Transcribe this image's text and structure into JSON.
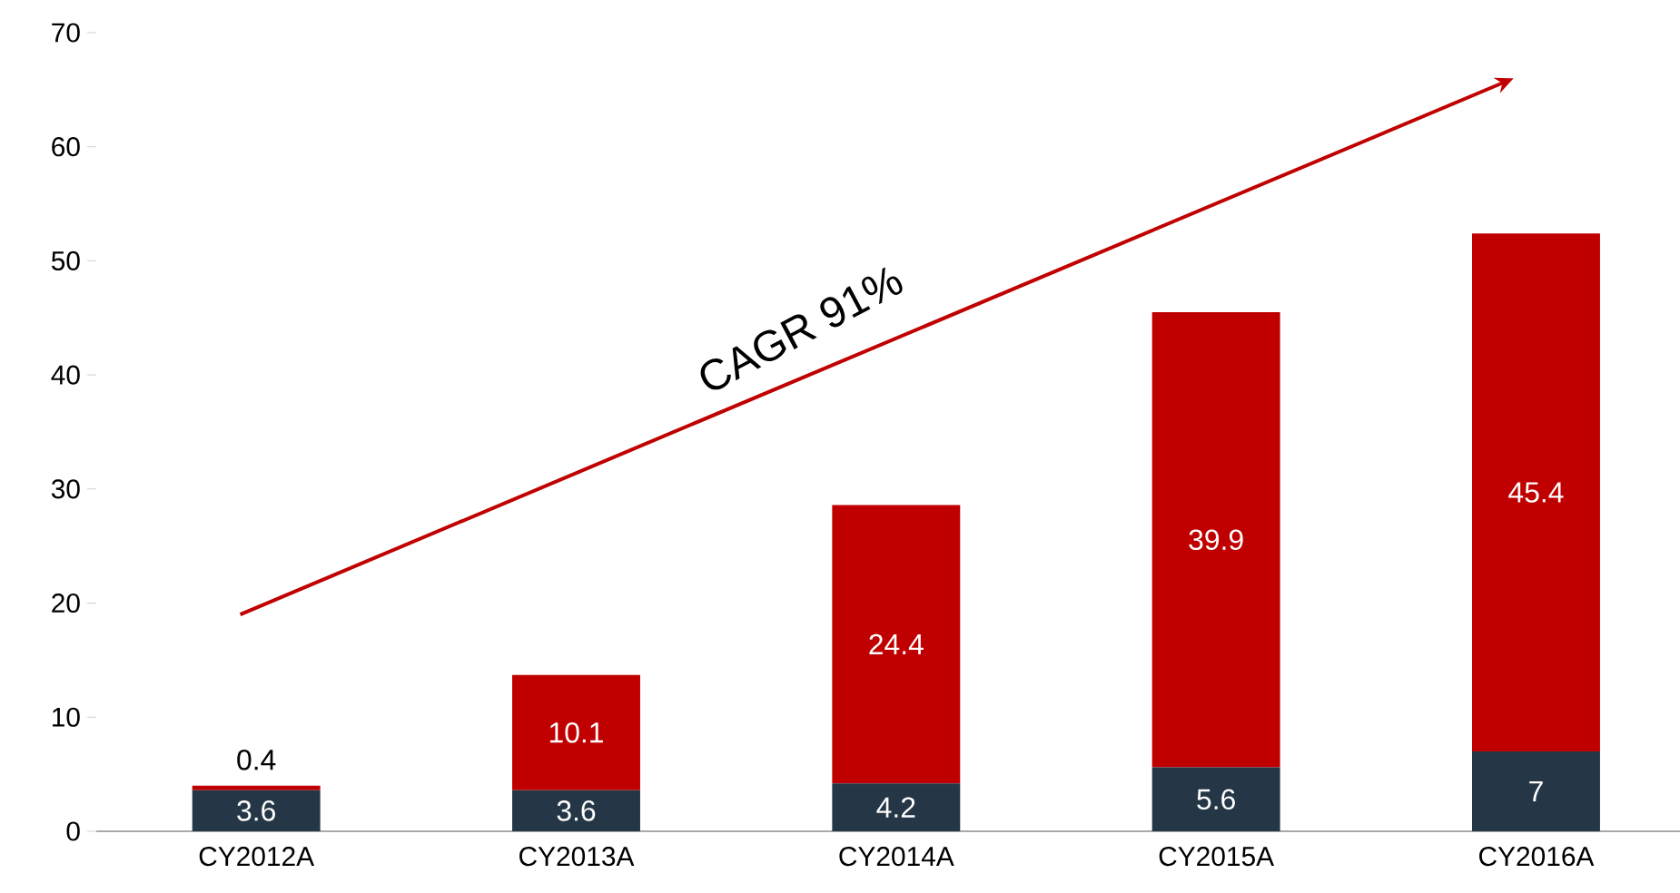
{
  "chart_data": {
    "type": "bar",
    "stacked": true,
    "categories": [
      "CY2012A",
      "CY2013A",
      "CY2014A",
      "CY2015A",
      "CY2016A"
    ],
    "series": [
      {
        "color": "#253746",
        "values": [
          3.6,
          3.6,
          4.2,
          5.6,
          7
        ]
      },
      {
        "color": "#c00000",
        "values": [
          0.4,
          10.1,
          24.4,
          39.9,
          45.4
        ]
      }
    ],
    "ylim": [
      0,
      70
    ],
    "yticks": [
      0,
      10,
      20,
      30,
      40,
      50,
      60,
      70
    ],
    "data_labels": true,
    "annotations": [
      "CAGR 91%"
    ]
  }
}
